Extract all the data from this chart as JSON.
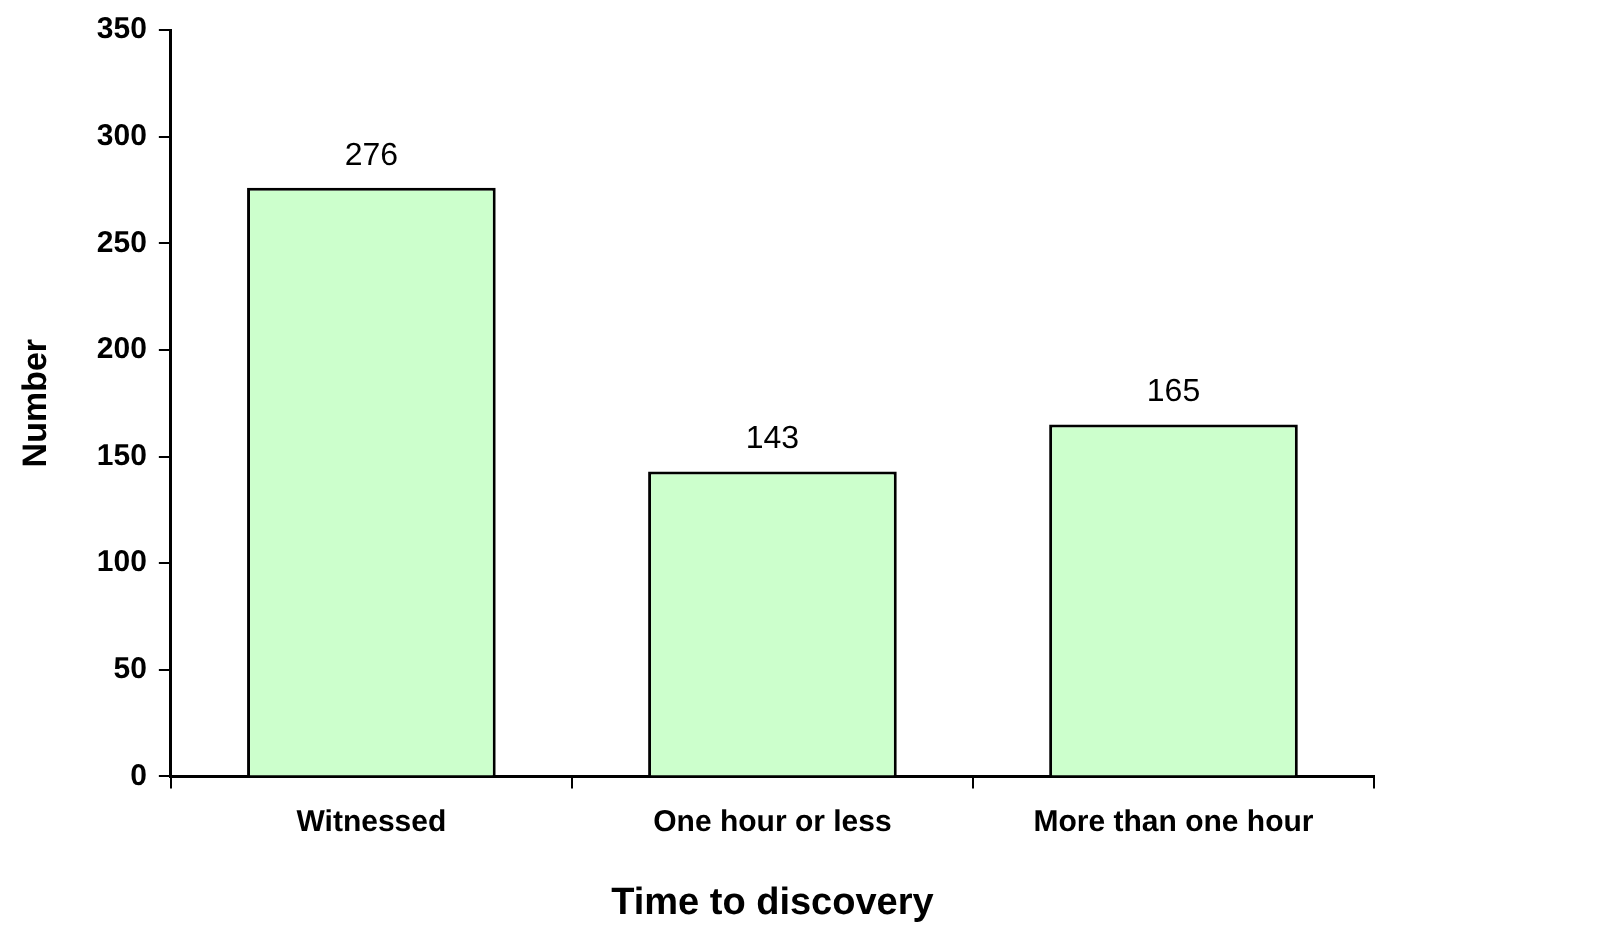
{
  "chart_data": {
    "type": "bar",
    "xlabel": "Time to discovery",
    "ylabel": "Number",
    "categories": [
      "Witnessed",
      "One hour or less",
      "More than one hour"
    ],
    "values": [
      276,
      143,
      165
    ],
    "color": "#ccffcc",
    "ylim": [
      0,
      350
    ],
    "yticks": [
      0,
      50,
      100,
      150,
      200,
      250,
      300,
      350
    ],
    "grid": false,
    "legend": false,
    "data_labels": true
  }
}
